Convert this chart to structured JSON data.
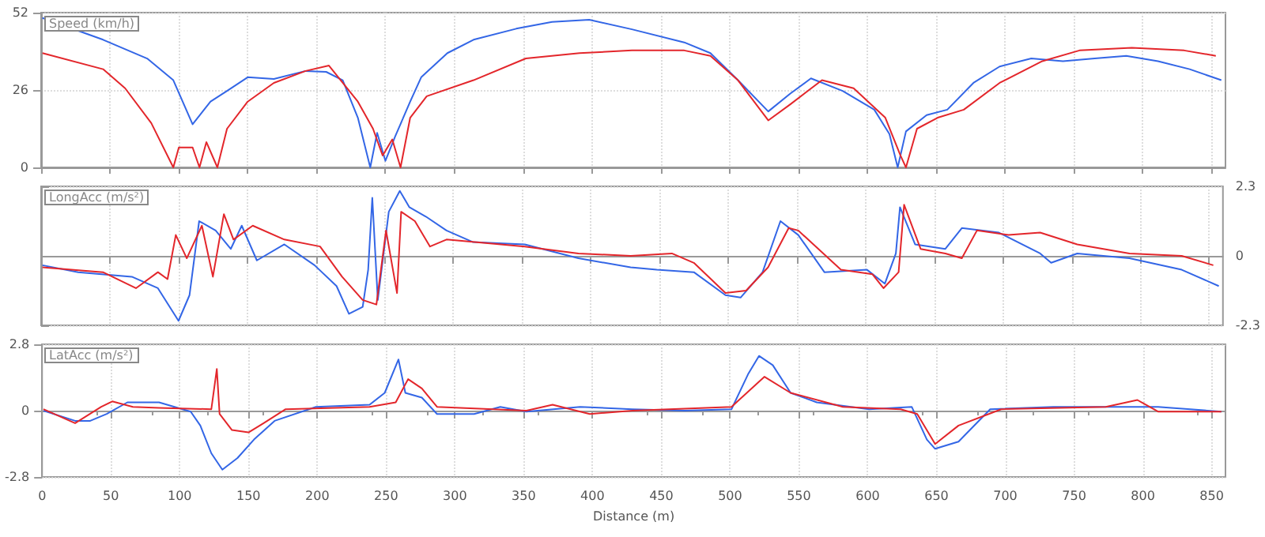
{
  "chart_data": [
    {
      "type": "line",
      "ylabel": "Speed (km/h)",
      "xlim": [
        0,
        860
      ],
      "xticks": [
        0,
        50,
        100,
        150,
        200,
        250,
        300,
        350,
        400,
        450,
        500,
        550,
        600,
        650,
        700,
        750,
        800,
        850
      ],
      "ylim": [
        0,
        52
      ],
      "yticks": [
        0,
        26,
        52
      ],
      "grid": true,
      "marker": "none",
      "line_style": "solid",
      "tick_labels": "y",
      "series": [
        {
          "color": "#3366e6",
          "x": [
            1,
            45,
            77,
            96,
            110,
            123,
            135,
            150,
            169,
            192,
            207,
            219,
            230,
            239,
            244,
            250,
            257,
            268,
            276,
            295,
            314,
            345,
            371,
            398,
            429,
            467,
            486,
            506,
            528,
            544,
            559,
            582,
            605,
            616,
            622,
            628,
            643,
            658,
            677,
            696,
            719,
            742,
            765,
            788,
            811,
            834,
            857
          ],
          "values": [
            50.2,
            42.9,
            36.6,
            29.3,
            14.5,
            22.1,
            25.7,
            30.3,
            29.7,
            32.4,
            32.1,
            29.3,
            16.7,
            0,
            11.6,
            2.2,
            10.3,
            22.1,
            30.3,
            38.4,
            42.9,
            46.6,
            48.9,
            49.6,
            46.4,
            42,
            38.4,
            29.3,
            18.8,
            24.8,
            29.9,
            25.7,
            19.4,
            11.2,
            0,
            12.1,
            17.6,
            19.4,
            28.4,
            33.9,
            36.6,
            35.7,
            36.6,
            37.5,
            35.7,
            33,
            29.3
          ]
        },
        {
          "color": "#e3262b",
          "x": [
            1,
            45,
            61,
            80,
            96,
            100,
            110,
            115,
            120,
            128,
            135,
            150,
            169,
            192,
            209,
            230,
            241,
            248,
            255,
            261,
            268,
            280,
            314,
            352,
            391,
            429,
            467,
            486,
            506,
            528,
            544,
            567,
            590,
            613,
            624,
            628,
            636,
            651,
            670,
            696,
            727,
            754,
            792,
            830,
            853
          ],
          "values": [
            38.4,
            33,
            26.6,
            14.9,
            0,
            6.7,
            6.7,
            0,
            8.5,
            0,
            13,
            22.1,
            28.4,
            32.4,
            34.2,
            22.1,
            13,
            4,
            9.4,
            0,
            16.7,
            23.9,
            29.3,
            36.6,
            38.4,
            39.3,
            39.3,
            37.5,
            29.3,
            15.8,
            21.2,
            29.3,
            26.6,
            16.7,
            4,
            0,
            13,
            16.7,
            19.4,
            28.4,
            35.7,
            39.3,
            40.2,
            39.3,
            37.5
          ]
        }
      ]
    },
    {
      "type": "line",
      "y2label": "LongAcc (m/s²)",
      "xlim": [
        0,
        860
      ],
      "xticks": [
        0,
        50,
        100,
        150,
        200,
        250,
        300,
        350,
        400,
        450,
        500,
        550,
        600,
        650,
        700,
        750,
        800,
        850
      ],
      "y2lim": [
        -2.3,
        2.3
      ],
      "y2ticks": [
        -2.3,
        0,
        2.3
      ],
      "grid": true,
      "marker": "none",
      "line_style": "solid",
      "tick_labels": "y",
      "series": [
        {
          "color": "#3366e6",
          "axis": "y2",
          "x": [
            1,
            27,
            66,
            85,
            100,
            108,
            115,
            127,
            138,
            146,
            157,
            177,
            199,
            215,
            224,
            234,
            238,
            241,
            245,
            253,
            261,
            268,
            280,
            295,
            314,
            352,
            391,
            429,
            448,
            475,
            498,
            509,
            525,
            538,
            551,
            570,
            601,
            614,
            622,
            625,
            636,
            658,
            670,
            697,
            727,
            735,
            754,
            792,
            830,
            857
          ],
          "values": [
            -0.31,
            -0.54,
            -0.69,
            -1.07,
            -2.15,
            -1.3,
            1.15,
            0.84,
            0.23,
            1,
            -0.15,
            0.38,
            -0.31,
            -1,
            -1.92,
            -1.69,
            -0.46,
            1.92,
            -1.46,
            1.46,
            2.15,
            1.61,
            1.3,
            0.84,
            0.46,
            0.38,
            -0.08,
            -0.38,
            -0.46,
            -0.54,
            -1.3,
            -1.38,
            -0.54,
            1.15,
            0.69,
            -0.54,
            -0.46,
            -0.92,
            0.08,
            1.61,
            0.38,
            0.23,
            0.92,
            0.77,
            0.08,
            -0.23,
            0.08,
            -0.08,
            -0.46,
            -1
          ]
        },
        {
          "color": "#e3262b",
          "axis": "y2",
          "x": [
            1,
            45,
            69,
            85,
            92,
            98,
            106,
            117,
            125,
            133,
            140,
            154,
            177,
            203,
            219,
            234,
            244,
            251,
            259,
            262,
            272,
            283,
            295,
            352,
            391,
            429,
            459,
            475,
            498,
            513,
            529,
            544,
            551,
            582,
            605,
            613,
            624,
            628,
            640,
            658,
            670,
            681,
            704,
            727,
            754,
            792,
            830,
            853
          ],
          "values": [
            -0.38,
            -0.54,
            -1.07,
            -0.54,
            -0.77,
            0.69,
            -0.08,
            1,
            -0.69,
            1.38,
            0.54,
            1,
            0.54,
            0.31,
            -0.69,
            -1.46,
            -1.61,
            0.84,
            -1.23,
            1.46,
            1.15,
            0.31,
            0.54,
            0.31,
            0.08,
            0,
            0.08,
            -0.23,
            -1.23,
            -1.15,
            -0.38,
            0.92,
            0.84,
            -0.46,
            -0.61,
            -1.07,
            -0.54,
            1.69,
            0.23,
            0.08,
            -0.08,
            0.84,
            0.69,
            0.77,
            0.38,
            0.08,
            0,
            -0.31
          ]
        }
      ]
    },
    {
      "type": "line",
      "ylabel": "LatAcc (m/s²)",
      "xlabel": "Distance (m)",
      "xlim": [
        0,
        860
      ],
      "xticks": [
        0,
        50,
        100,
        150,
        200,
        250,
        300,
        350,
        400,
        450,
        500,
        550,
        600,
        650,
        700,
        750,
        800,
        850
      ],
      "ylim": [
        -2.8,
        2.8
      ],
      "yticks": [
        -2.8,
        0,
        2.8
      ],
      "grid": true,
      "marker": "none",
      "line_style": "solid",
      "series": [
        {
          "color": "#3366e6",
          "x": [
            1,
            24,
            35,
            47,
            62,
            85,
            108,
            115,
            123,
            131,
            142,
            154,
            169,
            199,
            238,
            249,
            259,
            264,
            276,
            287,
            314,
            333,
            352,
            391,
            429,
            467,
            501,
            513,
            521,
            531,
            544,
            563,
            601,
            632,
            643,
            649,
            666,
            689,
            735,
            811,
            857
          ],
          "values": [
            0,
            -0.43,
            -0.43,
            -0.14,
            0.35,
            0.35,
            -0.04,
            -0.63,
            -1.8,
            -2.49,
            -2,
            -1.22,
            -0.43,
            0.16,
            0.25,
            0.75,
            2.16,
            0.75,
            0.55,
            -0.14,
            -0.14,
            0.16,
            -0.04,
            0.16,
            0.06,
            0,
            0.06,
            1.53,
            2.31,
            1.92,
            0.75,
            0.35,
            0.06,
            0.16,
            -1.22,
            -1.61,
            -1.31,
            0.06,
            0.16,
            0.16,
            -0.04
          ]
        },
        {
          "color": "#e3262b",
          "x": [
            1,
            24,
            43,
            51,
            66,
            85,
            123,
            127,
            129,
            138,
            150,
            161,
            177,
            238,
            257,
            266,
            276,
            287,
            352,
            371,
            398,
            429,
            501,
            525,
            544,
            582,
            624,
            636,
            649,
            666,
            697,
            773,
            796,
            811,
            857
          ],
          "values": [
            0.06,
            -0.53,
            0.16,
            0.39,
            0.16,
            0.12,
            0.06,
            1.76,
            -0.14,
            -0.82,
            -0.92,
            -0.53,
            0.06,
            0.16,
            0.35,
            1.33,
            0.94,
            0.16,
            0,
            0.25,
            -0.14,
            0,
            0.16,
            1.43,
            0.75,
            0.16,
            0.06,
            -0.14,
            -1.41,
            -0.63,
            0.06,
            0.16,
            0.45,
            -0.04,
            -0.04
          ]
        }
      ]
    }
  ]
}
